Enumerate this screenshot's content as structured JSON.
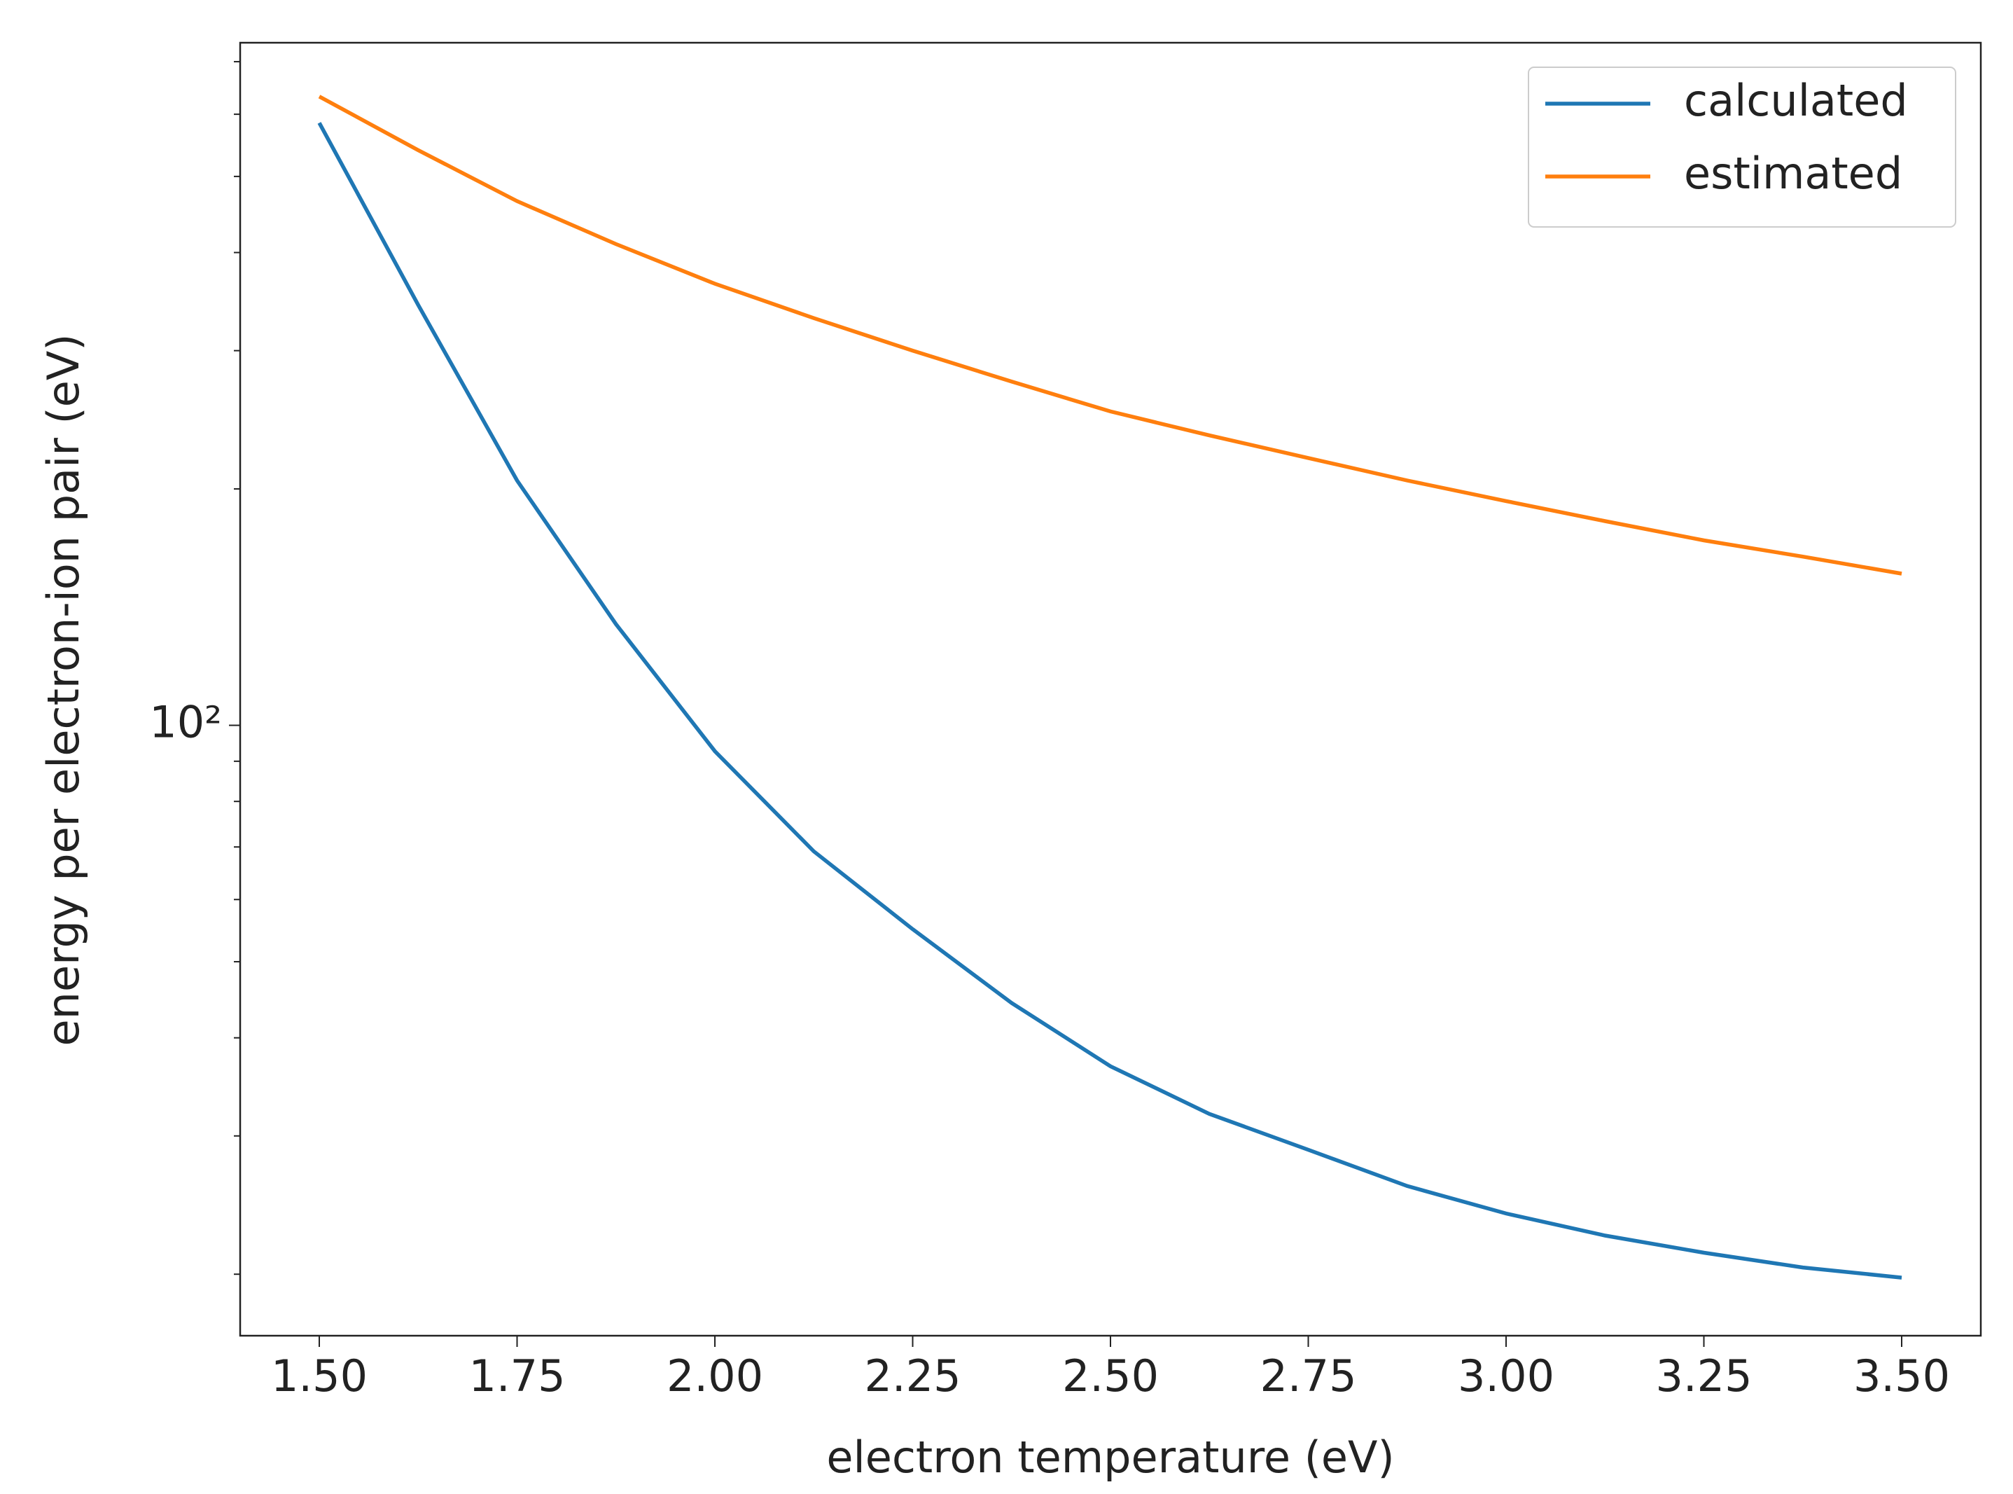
{
  "chart_data": {
    "type": "line",
    "xlabel": "electron temperature (eV)",
    "ylabel": "energy per electron-ion pair (eV)",
    "x": [
      1.5,
      1.625,
      1.75,
      1.875,
      2.0,
      2.125,
      2.25,
      2.375,
      2.5,
      2.625,
      2.75,
      2.875,
      3.0,
      3.125,
      3.25,
      3.375,
      3.5
    ],
    "series": [
      {
        "name": "calculated",
        "color": "#1f77b4",
        "values": [
          585,
          343,
          205,
          134.5,
          92.7,
          69.1,
          55.0,
          44.3,
          36.8,
          32.0,
          28.8,
          25.9,
          23.9,
          22.4,
          21.3,
          20.4,
          19.8
        ]
      },
      {
        "name": "estimated",
        "color": "#ff7f0e",
        "values": [
          632,
          540,
          465,
          410,
          365,
          330,
          300,
          274,
          251,
          234,
          219,
          205,
          193,
          182,
          172,
          164,
          156
        ]
      }
    ],
    "xlim": [
      1.4,
      3.6
    ],
    "xticks": [
      {
        "value": 1.5,
        "label": "1.50"
      },
      {
        "value": 1.75,
        "label": "1.75"
      },
      {
        "value": 2.0,
        "label": "2.00"
      },
      {
        "value": 2.25,
        "label": "2.25"
      },
      {
        "value": 2.5,
        "label": "2.50"
      },
      {
        "value": 2.75,
        "label": "2.75"
      },
      {
        "value": 3.0,
        "label": "3.00"
      },
      {
        "value": 3.25,
        "label": "3.25"
      },
      {
        "value": 3.5,
        "label": "3.50"
      }
    ],
    "yscale": "log",
    "ylim": [
      16.7,
      740
    ],
    "yticks": [
      {
        "value": 100,
        "label": "10²"
      }
    ],
    "yminorticks": [
      20,
      30,
      40,
      50,
      60,
      70,
      80,
      90,
      200,
      300,
      400,
      500,
      600,
      700
    ],
    "legend": "upper right"
  }
}
